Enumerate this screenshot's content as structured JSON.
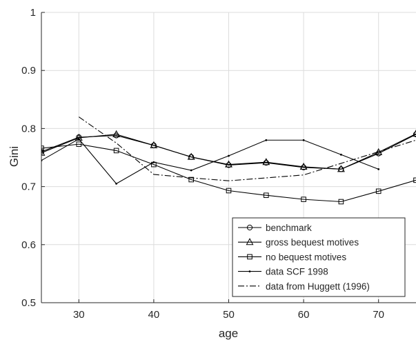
{
  "chart_data": {
    "type": "line",
    "xlabel": "age",
    "ylabel": "Gini",
    "xlim": [
      25,
      75
    ],
    "ylim": [
      0.5,
      1.0
    ],
    "xticks": [
      30,
      40,
      50,
      60,
      70
    ],
    "yticks": [
      0.5,
      0.6,
      0.7,
      0.8,
      0.9,
      1.0
    ],
    "xtick_labels": [
      "30",
      "40",
      "50",
      "60",
      "70"
    ],
    "ytick_labels": [
      "0.5",
      "0.6",
      "0.7",
      "0.8",
      "0.9",
      "1"
    ],
    "grid": true,
    "legend_position": "bottom-right",
    "series": [
      {
        "name": "benchmark",
        "marker": "circle",
        "line": "solid",
        "color": "#000000",
        "x": [
          25,
          30,
          35,
          40,
          45,
          50,
          55,
          60,
          65,
          70,
          75
        ],
        "y": [
          0.76,
          0.785,
          0.788,
          0.771,
          0.751,
          0.737,
          0.741,
          0.733,
          0.73,
          0.757,
          0.79
        ]
      },
      {
        "name": "gross bequest motives",
        "marker": "triangle",
        "line": "solid",
        "color": "#000000",
        "x": [
          25,
          30,
          35,
          40,
          45,
          50,
          55,
          60,
          65,
          70,
          75
        ],
        "y": [
          0.758,
          0.784,
          0.79,
          0.771,
          0.751,
          0.738,
          0.742,
          0.734,
          0.73,
          0.759,
          0.791
        ]
      },
      {
        "name": "no bequest motives",
        "marker": "square",
        "line": "solid",
        "color": "#000000",
        "x": [
          25,
          30,
          35,
          40,
          45,
          50,
          55,
          60,
          65,
          70,
          75
        ],
        "y": [
          0.766,
          0.773,
          0.762,
          0.738,
          0.712,
          0.693,
          0.685,
          0.678,
          0.674,
          0.692,
          0.711
        ]
      },
      {
        "name": "data SCF 1998",
        "marker": "point",
        "line": "solid",
        "color": "#000000",
        "x": [
          25,
          30,
          35,
          40,
          45,
          50,
          55,
          60,
          65,
          70
        ],
        "y": [
          0.745,
          0.782,
          0.705,
          0.742,
          0.728,
          0.753,
          0.78,
          0.78,
          0.755,
          0.73
        ]
      },
      {
        "name": "data from Huggett (1996)",
        "marker": "none",
        "line": "dashdot",
        "color": "#000000",
        "x": [
          30,
          35,
          40,
          45,
          50,
          55,
          60,
          65,
          70,
          75
        ],
        "y": [
          0.82,
          0.775,
          0.721,
          0.715,
          0.71,
          0.715,
          0.72,
          0.74,
          0.76,
          0.78
        ]
      }
    ]
  }
}
